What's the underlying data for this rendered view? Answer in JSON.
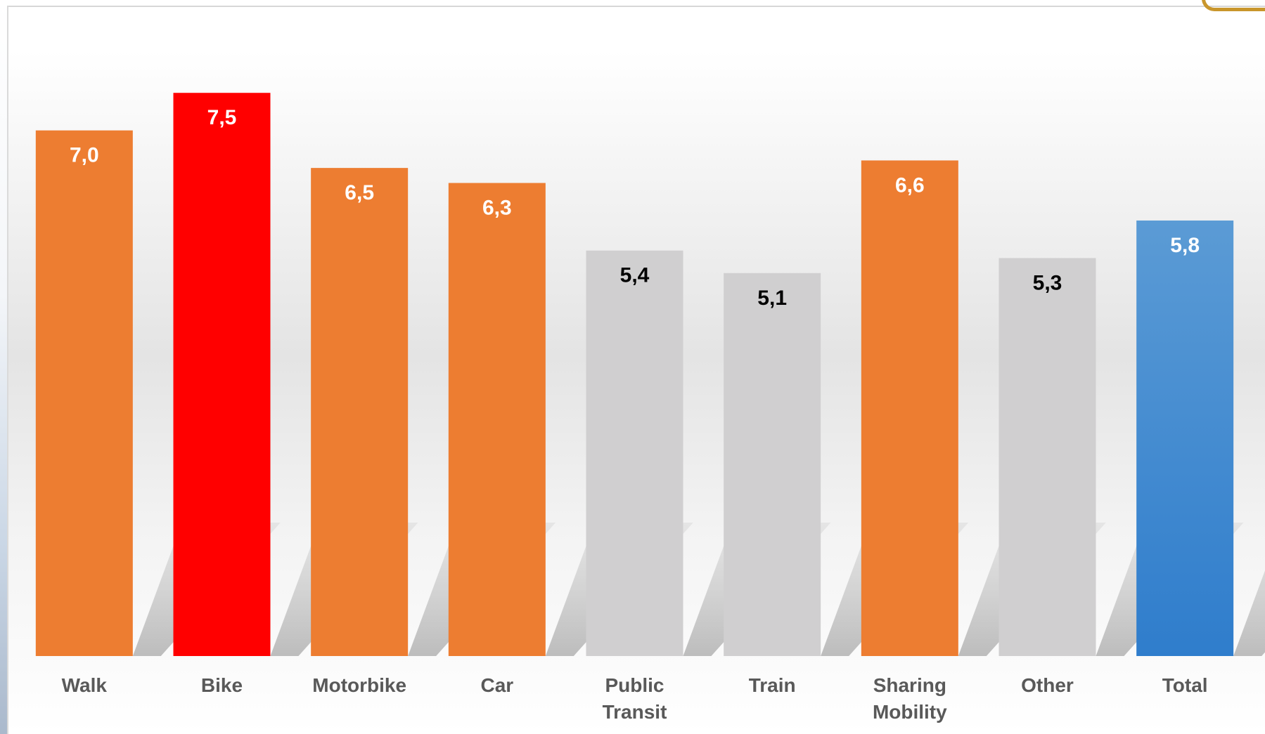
{
  "chart_data": {
    "type": "bar",
    "categories": [
      "Walk",
      "Bike",
      "Motorbike",
      "Car",
      "Public Transit",
      "Train",
      "Sharing Mobility",
      "Other",
      "Total"
    ],
    "values": [
      7.0,
      7.5,
      6.5,
      6.3,
      5.4,
      5.1,
      6.6,
      5.3,
      5.8
    ],
    "value_labels": [
      "7,0",
      "7,5",
      "6,5",
      "6,3",
      "5,4",
      "5,1",
      "6,6",
      "5,3",
      "5,8"
    ],
    "bar_colors": [
      "#ed7d31",
      "#ff0000",
      "#ed7d31",
      "#ed7d31",
      "#d0cfd0",
      "#d0cfd0",
      "#ed7d31",
      "#d0cfd0",
      "#4a8fd4"
    ],
    "label_colors": [
      "#ffffff",
      "#ffffff",
      "#ffffff",
      "#ffffff",
      "#000000",
      "#000000",
      "#ffffff",
      "#000000",
      "#ffffff"
    ],
    "ylim": [
      0,
      8.4
    ],
    "grid": false,
    "legend": "none",
    "axis_label_color": "#595959"
  }
}
